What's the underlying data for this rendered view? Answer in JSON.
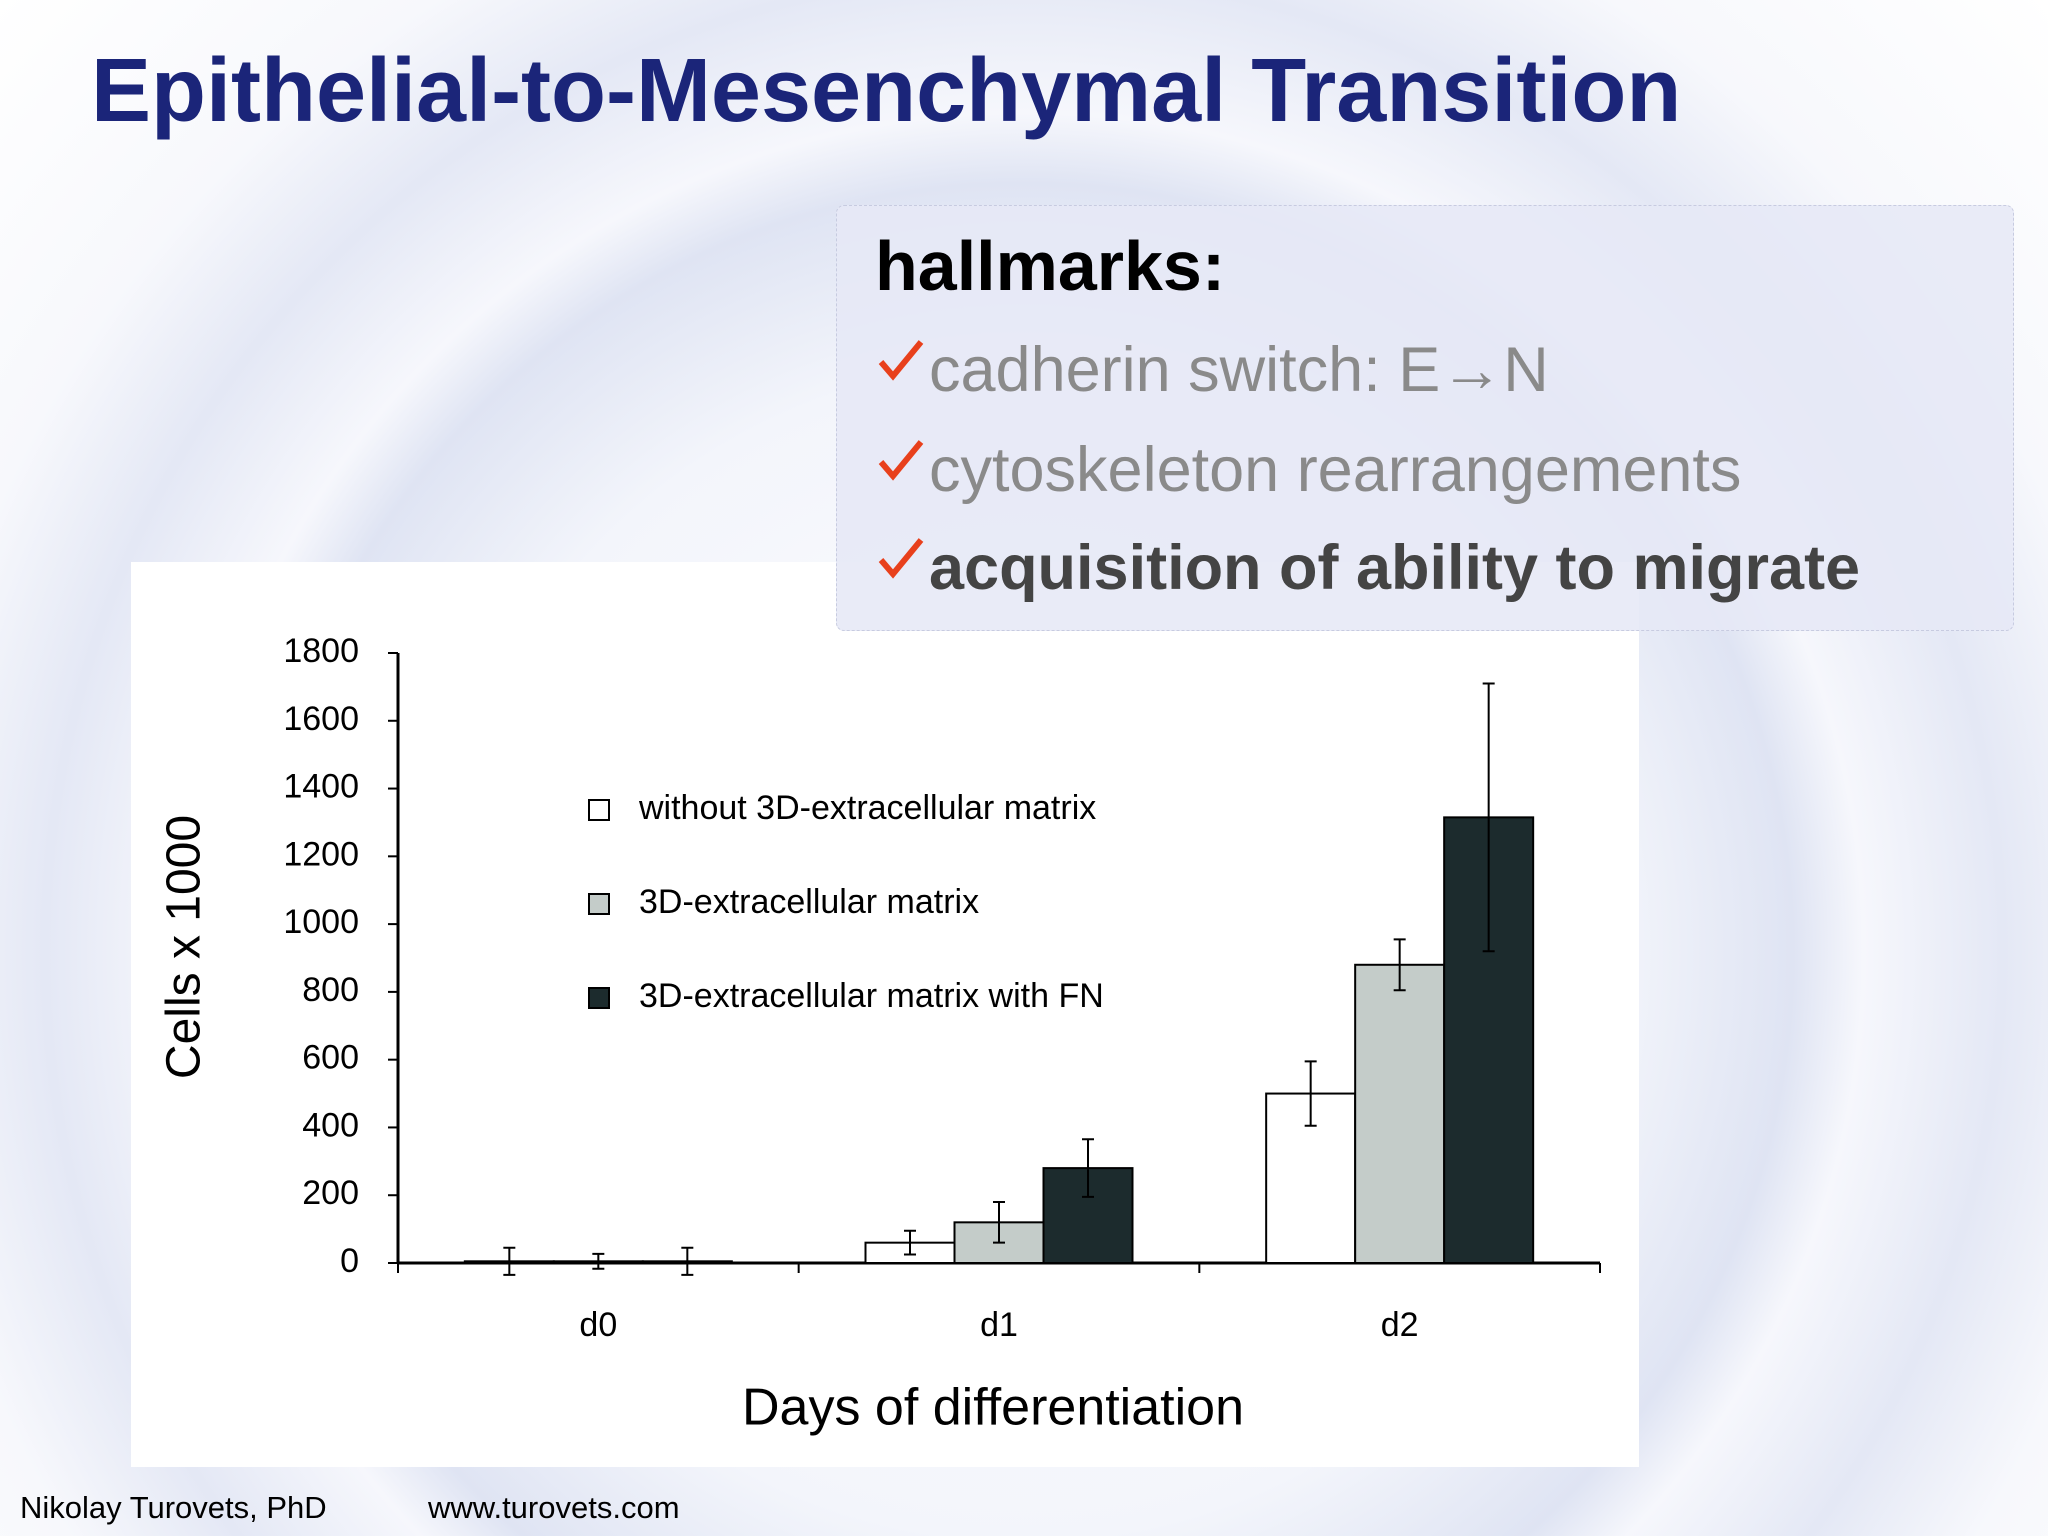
{
  "slide": {
    "title": "Epithelial-to-Mesenchymal Transition",
    "hallmarks": {
      "heading": "hallmarks:",
      "items": [
        "cadherin switch: E→N",
        "cytoskeleton rearrangements",
        "acquisition of ability to migrate"
      ]
    },
    "footer": {
      "author": "Nikolay Turovets, PhD",
      "website": "www.turovets.com"
    }
  },
  "chart_data": {
    "type": "bar",
    "x_label": "Days of differentiation",
    "y_label": "Cells x 1000",
    "categories": [
      "d0",
      "d1",
      "d2"
    ],
    "series": [
      {
        "name": "without 3D-extracellular matrix",
        "color": "#ffffff",
        "values": [
          5,
          60,
          500
        ],
        "errors": [
          40,
          35,
          95
        ]
      },
      {
        "name": "3D-extracellular matrix",
        "color": "#c4ccc9",
        "values": [
          5,
          120,
          880
        ],
        "errors": [
          22,
          60,
          75
        ]
      },
      {
        "name": "3D-extracellular matrix with FN",
        "color": "#1c2b2d",
        "values": [
          5,
          280,
          1315
        ],
        "errors": [
          40,
          85,
          395
        ]
      }
    ],
    "ylim": [
      0,
      1800
    ],
    "yticks": [
      0,
      200,
      400,
      600,
      800,
      1000,
      1200,
      1400,
      1600,
      1800
    ],
    "legend": "upper left"
  }
}
